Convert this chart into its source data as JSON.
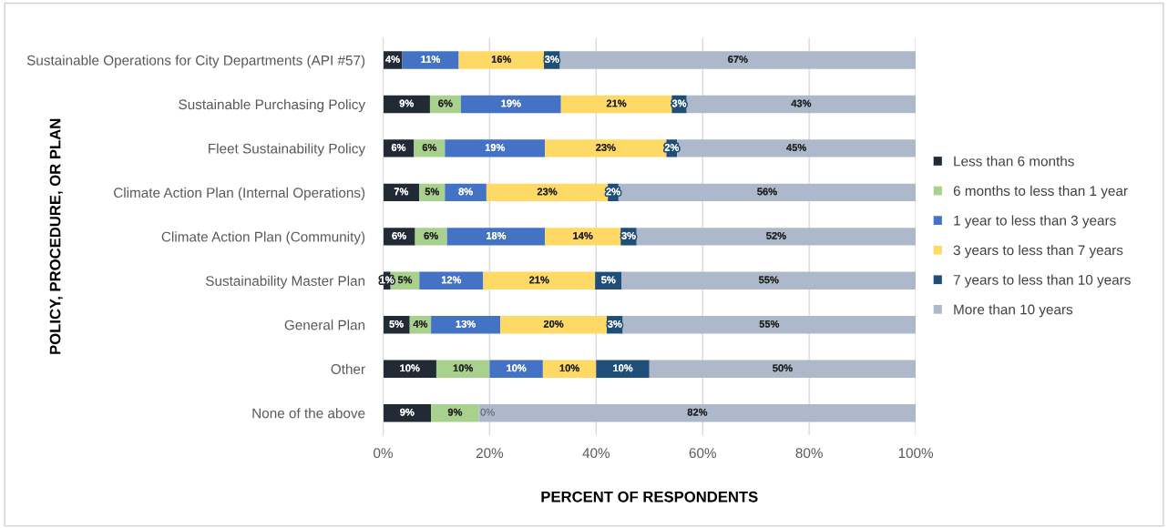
{
  "chart_data": {
    "type": "bar",
    "orientation": "horizontal",
    "stacked": true,
    "xlabel": "PERCENT OF RESPONDENTS",
    "ylabel": "POLICY, PROCEDURE, OR PLAN",
    "categories": [
      "Sustainable Operations for City Departments (API #57)",
      "Sustainable Purchasing Policy",
      "Fleet Sustainability Policy",
      "Climate Action Plan (Internal Operations)",
      "Climate Action Plan (Community)",
      "Sustainability Master Plan",
      "General Plan",
      "Other",
      "None of the above"
    ],
    "series": [
      {
        "name": "Less than 6 months",
        "color": "#222a35",
        "values": [
          3.6,
          8.8,
          5.8,
          6.8,
          6,
          1.4,
          5,
          10,
          9
        ],
        "value_labels": [
          "4%",
          "9%",
          "6%",
          "7%",
          "6%",
          "1%",
          "5%",
          "10%",
          "9%"
        ]
      },
      {
        "name": "6 months to less than 1 year",
        "color": "#a9d18e",
        "values": [
          0,
          5.8,
          5.8,
          4.8,
          6,
          5.4,
          4,
          10,
          9
        ],
        "value_labels": [
          null,
          "6%",
          "6%",
          "5%",
          "6%",
          "5%",
          "4%",
          "10%",
          "9%"
        ]
      },
      {
        "name": "1 year to less than 3 years",
        "color": "#4472c4",
        "values": [
          10.6,
          18.8,
          18.8,
          7.8,
          18.4,
          12,
          13,
          10,
          0
        ],
        "value_labels": [
          "11%",
          "19%",
          "19%",
          "8%",
          "18%",
          "12%",
          "13%",
          "10%",
          null
        ]
      },
      {
        "name": "3 years to less than 7 years",
        "color": "#ffd966",
        "values": [
          16,
          20.8,
          22.8,
          22.8,
          14.2,
          21,
          20,
          10,
          0
        ],
        "value_labels": [
          "16%",
          "21%",
          "23%",
          "23%",
          "14%",
          "21%",
          "20%",
          "10%",
          null
        ]
      },
      {
        "name": "7 years to less than 10 years",
        "color": "#1f4e79",
        "values": [
          3,
          2.8,
          2,
          2,
          3,
          5,
          3,
          10,
          0
        ],
        "value_labels": [
          "3%",
          "3%",
          "2%",
          "2%",
          "3%",
          "5%",
          "3%",
          "10%",
          null
        ]
      },
      {
        "name": "More than 10 years",
        "color": "#adb9ca",
        "values": [
          66.8,
          43,
          44.8,
          55.8,
          52.4,
          55.2,
          55,
          50,
          82
        ],
        "value_labels": [
          "67%",
          "43%",
          "45%",
          "56%",
          "52%",
          "55%",
          "55%",
          "50%",
          "82%"
        ]
      }
    ],
    "xlim": [
      0,
      100
    ],
    "xticks": [
      {
        "value": 0,
        "label": "0%"
      },
      {
        "value": 20,
        "label": "20%"
      },
      {
        "value": 40,
        "label": "40%"
      },
      {
        "value": 60,
        "label": "60%"
      },
      {
        "value": 80,
        "label": "80%"
      },
      {
        "value": 100,
        "label": "100%"
      }
    ],
    "annotations": [
      {
        "text": "0%",
        "x": 18,
        "y": "None of the above"
      }
    ],
    "grid": "x",
    "legend": "right"
  }
}
